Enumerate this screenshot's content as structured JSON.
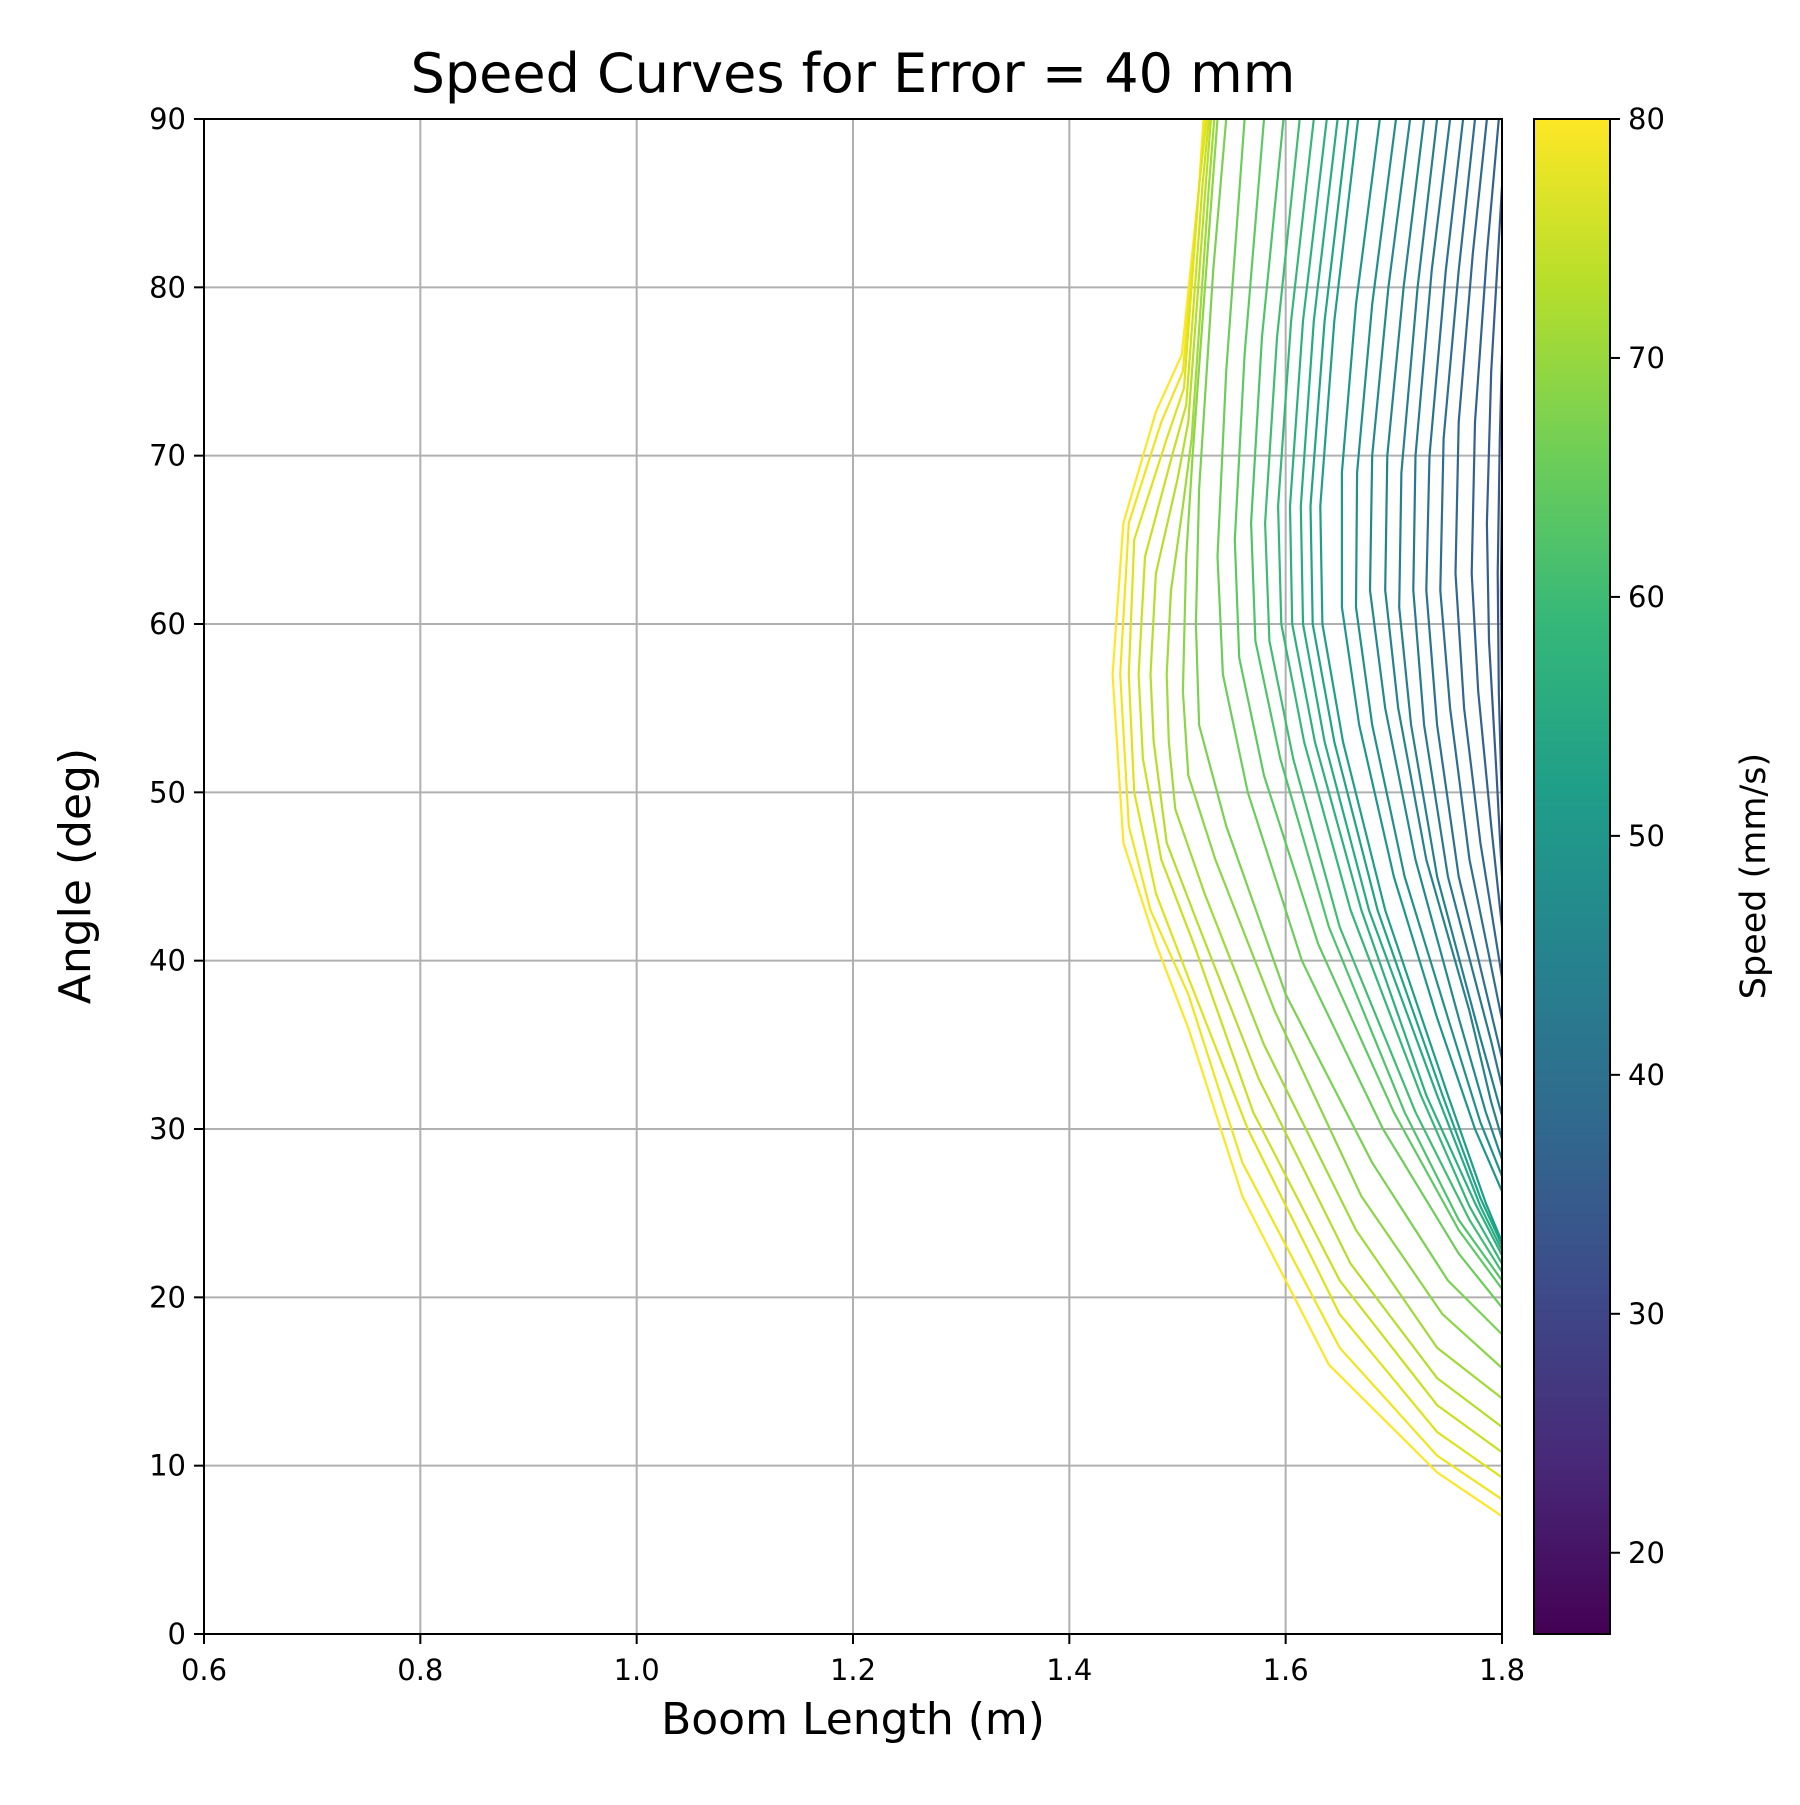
{
  "chart_data": {
    "type": "line",
    "title": "Speed Curves for Error = 40 mm",
    "xlabel": "Boom Length (m)",
    "ylabel": "Angle (deg)",
    "xlim": [
      0.6,
      1.8
    ],
    "ylim": [
      0,
      90
    ],
    "x_ticks": [
      "0.6",
      "0.8",
      "1.0",
      "1.2",
      "1.4",
      "1.6",
      "1.8"
    ],
    "y_ticks": [
      "0",
      "10",
      "20",
      "30",
      "40",
      "50",
      "60",
      "70",
      "80",
      "90"
    ],
    "grid": true,
    "colorbar": {
      "label": "Speed (mm/s)",
      "range": [
        16.6,
        80
      ],
      "ticks": [
        "20",
        "30",
        "40",
        "50",
        "60",
        "70",
        "80"
      ],
      "colormap": "viridis"
    },
    "series": [
      {
        "speed": 80,
        "color": "#fde725",
        "points": [
          [
            1.8,
            7
          ],
          [
            1.74,
            9.6
          ],
          [
            1.64,
            16
          ],
          [
            1.56,
            26
          ],
          [
            1.51,
            36
          ],
          [
            1.48,
            41
          ],
          [
            1.45,
            47
          ],
          [
            1.44,
            57
          ],
          [
            1.45,
            66
          ],
          [
            1.48,
            72.6
          ],
          [
            1.504,
            76
          ],
          [
            1.52,
            86
          ],
          [
            1.524,
            90
          ]
        ]
      },
      {
        "speed": 78.5,
        "color": "#f0e51d",
        "points": [
          [
            1.8,
            8
          ],
          [
            1.74,
            10.6
          ],
          [
            1.65,
            17
          ],
          [
            1.56,
            28
          ],
          [
            1.51,
            38
          ],
          [
            1.475,
            43
          ],
          [
            1.455,
            48
          ],
          [
            1.447,
            57
          ],
          [
            1.455,
            66
          ],
          [
            1.485,
            72
          ],
          [
            1.505,
            75
          ],
          [
            1.52,
            86
          ],
          [
            1.525,
            90
          ]
        ]
      },
      {
        "speed": 77,
        "color": "#dde318",
        "points": [
          [
            1.8,
            9.3
          ],
          [
            1.74,
            12
          ],
          [
            1.65,
            19
          ],
          [
            1.565,
            30
          ],
          [
            1.51,
            39
          ],
          [
            1.48,
            44
          ],
          [
            1.46,
            50
          ],
          [
            1.455,
            57
          ],
          [
            1.46,
            65
          ],
          [
            1.49,
            71
          ],
          [
            1.506,
            74
          ],
          [
            1.52,
            86
          ],
          [
            1.527,
            90
          ]
        ]
      },
      {
        "speed": 75.5,
        "color": "#c8e020",
        "points": [
          [
            1.8,
            10.8
          ],
          [
            1.74,
            13.6
          ],
          [
            1.65,
            21
          ],
          [
            1.57,
            31
          ],
          [
            1.515,
            41
          ],
          [
            1.485,
            46
          ],
          [
            1.468,
            52
          ],
          [
            1.464,
            57
          ],
          [
            1.47,
            64
          ],
          [
            1.495,
            70
          ],
          [
            1.508,
            73
          ],
          [
            1.523,
            86
          ],
          [
            1.529,
            90
          ]
        ]
      },
      {
        "speed": 74,
        "color": "#b5de2b",
        "points": [
          [
            1.8,
            12.3
          ],
          [
            1.74,
            15.2
          ],
          [
            1.66,
            22
          ],
          [
            1.575,
            33
          ],
          [
            1.52,
            42
          ],
          [
            1.49,
            47
          ],
          [
            1.478,
            53
          ],
          [
            1.475,
            57
          ],
          [
            1.48,
            63
          ],
          [
            1.5,
            68.6
          ],
          [
            1.51,
            72
          ],
          [
            1.526,
            86
          ],
          [
            1.531,
            90
          ]
        ]
      },
      {
        "speed": 72.5,
        "color": "#a0da39",
        "points": [
          [
            1.8,
            14
          ],
          [
            1.74,
            17
          ],
          [
            1.665,
            24
          ],
          [
            1.58,
            35
          ],
          [
            1.525,
            44
          ],
          [
            1.498,
            49
          ],
          [
            1.492,
            53
          ],
          [
            1.49,
            57
          ],
          [
            1.494,
            62
          ],
          [
            1.505,
            67
          ],
          [
            1.513,
            71
          ],
          [
            1.529,
            86
          ],
          [
            1.534,
            90
          ]
        ]
      },
      {
        "speed": 71,
        "color": "#8bd646",
        "points": [
          [
            1.8,
            15.8
          ],
          [
            1.745,
            19
          ],
          [
            1.67,
            26
          ],
          [
            1.59,
            37
          ],
          [
            1.535,
            46
          ],
          [
            1.51,
            51
          ],
          [
            1.505,
            56
          ],
          [
            1.508,
            64
          ],
          [
            1.514,
            70
          ],
          [
            1.53,
            84
          ],
          [
            1.537,
            90
          ]
        ]
      },
      {
        "speed": 69.5,
        "color": "#7ad151",
        "points": [
          [
            1.8,
            17.8
          ],
          [
            1.75,
            21
          ],
          [
            1.68,
            28
          ],
          [
            1.6,
            38
          ],
          [
            1.545,
            48
          ],
          [
            1.52,
            54
          ],
          [
            1.517,
            60
          ],
          [
            1.52,
            68
          ],
          [
            1.533,
            81
          ],
          [
            1.545,
            90
          ]
        ]
      },
      {
        "speed": 68,
        "color": "#6ccd5a",
        "points": [
          [
            1.8,
            19.4
          ],
          [
            1.76,
            22.6
          ],
          [
            1.69,
            30
          ],
          [
            1.615,
            40
          ],
          [
            1.565,
            50
          ],
          [
            1.542,
            57
          ],
          [
            1.537,
            64
          ],
          [
            1.545,
            75
          ],
          [
            1.562,
            90
          ]
        ]
      },
      {
        "speed": 66.5,
        "color": "#5ec962",
        "points": [
          [
            1.8,
            20.5
          ],
          [
            1.76,
            24
          ],
          [
            1.7,
            31
          ],
          [
            1.63,
            41
          ],
          [
            1.58,
            51
          ],
          [
            1.557,
            58
          ],
          [
            1.553,
            65
          ],
          [
            1.562,
            76
          ],
          [
            1.58,
            90
          ]
        ]
      },
      {
        "speed": 65,
        "color": "#4ec36b",
        "points": [
          [
            1.8,
            21
          ],
          [
            1.76,
            24.6
          ],
          [
            1.71,
            31
          ],
          [
            1.64,
            42
          ],
          [
            1.595,
            52
          ],
          [
            1.572,
            59
          ],
          [
            1.568,
            66
          ],
          [
            1.578,
            77
          ],
          [
            1.598,
            90
          ]
        ]
      },
      {
        "speed": 63.5,
        "color": "#40bd72",
        "points": [
          [
            1.8,
            21.5
          ],
          [
            1.77,
            24.6
          ],
          [
            1.72,
            31
          ],
          [
            1.65,
            42
          ],
          [
            1.607,
            52
          ],
          [
            1.585,
            59
          ],
          [
            1.581,
            66
          ],
          [
            1.592,
            77
          ],
          [
            1.613,
            90
          ]
        ]
      },
      {
        "speed": 62,
        "color": "#35b779",
        "points": [
          [
            1.8,
            22
          ],
          [
            1.77,
            25.4
          ],
          [
            1.725,
            32
          ],
          [
            1.66,
            43
          ],
          [
            1.617,
            53
          ],
          [
            1.596,
            60
          ],
          [
            1.593,
            67
          ],
          [
            1.605,
            78
          ],
          [
            1.626,
            90
          ]
        ]
      },
      {
        "speed": 60.5,
        "color": "#2cb17e",
        "points": [
          [
            1.8,
            22.5
          ],
          [
            1.775,
            25.6
          ],
          [
            1.73,
            32
          ],
          [
            1.67,
            43
          ],
          [
            1.627,
            53
          ],
          [
            1.606,
            60
          ],
          [
            1.604,
            67
          ],
          [
            1.616,
            78
          ],
          [
            1.638,
            90
          ]
        ]
      },
      {
        "speed": 59,
        "color": "#25ac82",
        "points": [
          [
            1.8,
            22.8
          ],
          [
            1.78,
            25.4
          ],
          [
            1.74,
            32
          ],
          [
            1.677,
            43
          ],
          [
            1.636,
            53
          ],
          [
            1.616,
            60
          ],
          [
            1.614,
            67
          ],
          [
            1.626,
            78
          ],
          [
            1.648,
            90
          ]
        ]
      },
      {
        "speed": 57.5,
        "color": "#20a486",
        "points": [
          [
            1.8,
            23.1
          ],
          [
            1.78,
            25.9
          ],
          [
            1.745,
            32
          ],
          [
            1.685,
            43
          ],
          [
            1.645,
            53
          ],
          [
            1.625,
            60
          ],
          [
            1.623,
            67
          ],
          [
            1.636,
            78
          ],
          [
            1.658,
            90
          ]
        ]
      },
      {
        "speed": 56,
        "color": "#1f9e89",
        "points": [
          [
            1.8,
            23.3
          ],
          [
            1.785,
            25.6
          ],
          [
            1.75,
            32
          ],
          [
            1.692,
            43
          ],
          [
            1.653,
            53
          ],
          [
            1.634,
            60
          ],
          [
            1.632,
            67
          ],
          [
            1.645,
            78
          ],
          [
            1.667,
            90
          ]
        ]
      },
      {
        "speed": 54,
        "color": "#1f968b",
        "points": [
          [
            1.8,
            26.3
          ],
          [
            1.775,
            30
          ],
          [
            1.74,
            36.6
          ],
          [
            1.7,
            45
          ],
          [
            1.668,
            54
          ],
          [
            1.652,
            61
          ],
          [
            1.652,
            69
          ],
          [
            1.665,
            79
          ],
          [
            1.687,
            90
          ]
        ]
      },
      {
        "speed": 52.5,
        "color": "#21908d",
        "points": [
          [
            1.8,
            27.2
          ],
          [
            1.78,
            30.4
          ],
          [
            1.75,
            36.6
          ],
          [
            1.71,
            45
          ],
          [
            1.68,
            54
          ],
          [
            1.665,
            61
          ],
          [
            1.666,
            69
          ],
          [
            1.68,
            79
          ],
          [
            1.702,
            90
          ]
        ]
      },
      {
        "speed": 51,
        "color": "#23898e",
        "points": [
          [
            1.8,
            28.2
          ],
          [
            1.785,
            31
          ],
          [
            1.76,
            36.6
          ],
          [
            1.72,
            46
          ],
          [
            1.692,
            55
          ],
          [
            1.678,
            62
          ],
          [
            1.68,
            70
          ],
          [
            1.695,
            80
          ],
          [
            1.715,
            90
          ]
        ]
      },
      {
        "speed": 49.5,
        "color": "#25838e",
        "points": [
          [
            1.8,
            29.4
          ],
          [
            1.79,
            31.6
          ],
          [
            1.77,
            37
          ],
          [
            1.73,
            46
          ],
          [
            1.704,
            55
          ],
          [
            1.692,
            62
          ],
          [
            1.694,
            70
          ],
          [
            1.709,
            80
          ],
          [
            1.728,
            90
          ]
        ]
      },
      {
        "speed": 48,
        "color": "#277f8e",
        "points": [
          [
            1.8,
            30.8
          ],
          [
            1.78,
            35.4
          ],
          [
            1.74,
            45
          ],
          [
            1.716,
            54
          ],
          [
            1.705,
            61
          ],
          [
            1.707,
            69
          ],
          [
            1.722,
            80
          ],
          [
            1.74,
            90
          ]
        ]
      },
      {
        "speed": 46.5,
        "color": "#29798e",
        "points": [
          [
            1.8,
            32.5
          ],
          [
            1.79,
            35.2
          ],
          [
            1.75,
            45
          ],
          [
            1.728,
            54
          ],
          [
            1.718,
            62
          ],
          [
            1.72,
            70
          ],
          [
            1.735,
            81
          ],
          [
            1.752,
            90
          ]
        ]
      },
      {
        "speed": 45,
        "color": "#2c728e",
        "points": [
          [
            1.8,
            34.2
          ],
          [
            1.76,
            45
          ],
          [
            1.74,
            54
          ],
          [
            1.73,
            62
          ],
          [
            1.733,
            70
          ],
          [
            1.748,
            81
          ],
          [
            1.764,
            90
          ]
        ]
      },
      {
        "speed": 43.5,
        "color": "#2e6e8e",
        "points": [
          [
            1.8,
            36.5
          ],
          [
            1.77,
            46
          ],
          [
            1.752,
            55
          ],
          [
            1.743,
            62
          ],
          [
            1.746,
            71
          ],
          [
            1.76,
            81
          ],
          [
            1.775,
            90
          ]
        ]
      },
      {
        "speed": 42,
        "color": "#31688e",
        "points": [
          [
            1.8,
            39
          ],
          [
            1.78,
            47
          ],
          [
            1.765,
            55
          ],
          [
            1.757,
            63
          ],
          [
            1.76,
            72
          ],
          [
            1.773,
            82
          ],
          [
            1.786,
            90
          ]
        ]
      },
      {
        "speed": 40.5,
        "color": "#33638d",
        "points": [
          [
            1.8,
            42
          ],
          [
            1.79,
            48
          ],
          [
            1.778,
            56
          ],
          [
            1.772,
            63
          ],
          [
            1.775,
            72
          ],
          [
            1.786,
            82
          ],
          [
            1.797,
            90
          ]
        ]
      },
      {
        "speed": 39,
        "color": "#365d8d",
        "points": [
          [
            1.8,
            45
          ],
          [
            1.795,
            51
          ],
          [
            1.788,
            59
          ],
          [
            1.786,
            66
          ],
          [
            1.79,
            75
          ],
          [
            1.8,
            86
          ]
        ]
      },
      {
        "speed": 37.5,
        "color": "#38598c",
        "points": [
          [
            1.8,
            49
          ],
          [
            1.797,
            56
          ],
          [
            1.796,
            63
          ],
          [
            1.798,
            71
          ],
          [
            1.8,
            76
          ]
        ]
      },
      {
        "speed": 36,
        "color": "#3b528b",
        "points": [
          [
            1.8,
            56
          ],
          [
            1.799,
            62
          ],
          [
            1.8,
            68
          ]
        ]
      }
    ]
  }
}
